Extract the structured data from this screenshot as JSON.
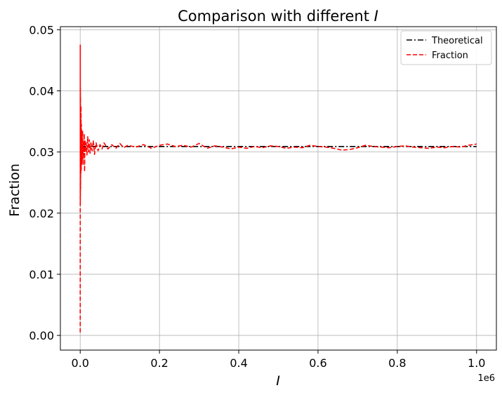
{
  "chart_data": {
    "type": "line",
    "title": "Comparison with different I",
    "title_prefix": "Comparison with different ",
    "title_symbol": "I",
    "xlabel": "I",
    "ylabel": "Fraction",
    "x_offset_label": "1e6",
    "xlim": [
      -50000,
      1050000
    ],
    "ylim": [
      -0.0024,
      0.0505
    ],
    "xticks": [
      0,
      200000,
      400000,
      600000,
      800000,
      1000000
    ],
    "xtick_labels": [
      "0.0",
      "0.2",
      "0.4",
      "0.6",
      "0.8",
      "1.0"
    ],
    "yticks": [
      0.0,
      0.01,
      0.02,
      0.03,
      0.04,
      0.05
    ],
    "ytick_labels": [
      "0.00",
      "0.01",
      "0.02",
      "0.03",
      "0.04",
      "0.05"
    ],
    "grid": true,
    "legend_position": "top-right",
    "series": [
      {
        "name": "Theoretical",
        "color": "#000000",
        "linestyle": "dashdot",
        "x": [
          0,
          1000000
        ],
        "y": [
          0.0309,
          0.0309
        ]
      },
      {
        "name": "Fraction",
        "color": "#ff0000",
        "linestyle": "dashed",
        "x": [
          100,
          200,
          300,
          400,
          500,
          700,
          900,
          1200,
          1500,
          2000,
          2500,
          3000,
          3500,
          4000,
          5000,
          6000,
          7000,
          8000,
          9000,
          10000,
          11000,
          12000,
          13000,
          15000,
          17000,
          19000,
          21000,
          23000,
          25000,
          27000,
          30000,
          33000,
          36000,
          40000,
          45000,
          50000,
          55000,
          60000,
          70000,
          80000,
          90000,
          100000,
          110000,
          120000,
          140000,
          160000,
          180000,
          200000,
          220000,
          240000,
          260000,
          280000,
          300000,
          320000,
          340000,
          360000,
          380000,
          400000,
          420000,
          440000,
          460000,
          480000,
          500000,
          520000,
          540000,
          560000,
          580000,
          600000,
          620000,
          640000,
          660000,
          680000,
          700000,
          720000,
          740000,
          760000,
          780000,
          800000,
          820000,
          840000,
          860000,
          880000,
          900000,
          920000,
          940000,
          960000,
          980000,
          1000000
        ],
        "y": [
          0.0005,
          0.0475,
          0.0215,
          0.0405,
          0.0228,
          0.039,
          0.024,
          0.036,
          0.0265,
          0.0375,
          0.027,
          0.0345,
          0.028,
          0.033,
          0.029,
          0.0335,
          0.028,
          0.0315,
          0.0295,
          0.033,
          0.0268,
          0.032,
          0.03,
          0.0315,
          0.0295,
          0.0325,
          0.03,
          0.032,
          0.0298,
          0.0315,
          0.0302,
          0.0318,
          0.0296,
          0.0315,
          0.0302,
          0.0312,
          0.0305,
          0.0315,
          0.0305,
          0.0312,
          0.0306,
          0.0314,
          0.0307,
          0.0311,
          0.0308,
          0.0312,
          0.0306,
          0.0311,
          0.0313,
          0.0309,
          0.0311,
          0.0308,
          0.0314,
          0.0306,
          0.031,
          0.0308,
          0.0305,
          0.0308,
          0.0306,
          0.0309,
          0.0307,
          0.031,
          0.0309,
          0.0306,
          0.0308,
          0.0307,
          0.0311,
          0.0309,
          0.0308,
          0.0306,
          0.0303,
          0.0304,
          0.0307,
          0.0311,
          0.0309,
          0.0308,
          0.0307,
          0.0309,
          0.031,
          0.0308,
          0.0307,
          0.0306,
          0.0308,
          0.0307,
          0.0309,
          0.0308,
          0.0311,
          0.0313
        ]
      }
    ]
  }
}
